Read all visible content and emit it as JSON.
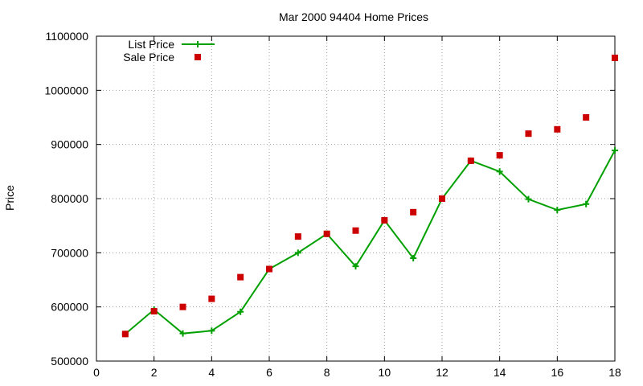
{
  "chart_data": {
    "type": "line",
    "title": "Mar 2000 94404 Home Prices",
    "xlabel": "",
    "ylabel": "Price",
    "xlim": [
      0,
      18
    ],
    "ylim": [
      500000,
      1100000
    ],
    "xticks": [
      "0",
      "2",
      "4",
      "6",
      "8",
      "10",
      "12",
      "14",
      "16",
      "18"
    ],
    "yticks": [
      "500000",
      "600000",
      "700000",
      "800000",
      "900000",
      "1000000",
      "1100000"
    ],
    "grid": true,
    "legend_position": "top-left",
    "colors": {
      "list": "#00a000",
      "sale": "#cc0000",
      "grid": "#a0a0a0"
    },
    "series": [
      {
        "name": "List Price",
        "style": "line-plus",
        "x": [
          1,
          2,
          3,
          4,
          5,
          6,
          7,
          8,
          9,
          10,
          11,
          12,
          13,
          14,
          15,
          16,
          17,
          18
        ],
        "y": [
          550000,
          595000,
          551000,
          556000,
          591000,
          670000,
          700000,
          735000,
          675000,
          760000,
          690000,
          800000,
          870000,
          850000,
          799000,
          779000,
          790000,
          889000
        ]
      },
      {
        "name": "Sale Price",
        "style": "square",
        "x": [
          1,
          2,
          3,
          4,
          5,
          6,
          7,
          8,
          9,
          10,
          11,
          12,
          13,
          14,
          15,
          16,
          17,
          18
        ],
        "y": [
          550000,
          592000,
          600000,
          615000,
          655000,
          670000,
          730000,
          735000,
          741000,
          760000,
          775000,
          800000,
          870000,
          880000,
          920000,
          928000,
          950000,
          1060000
        ]
      }
    ]
  }
}
